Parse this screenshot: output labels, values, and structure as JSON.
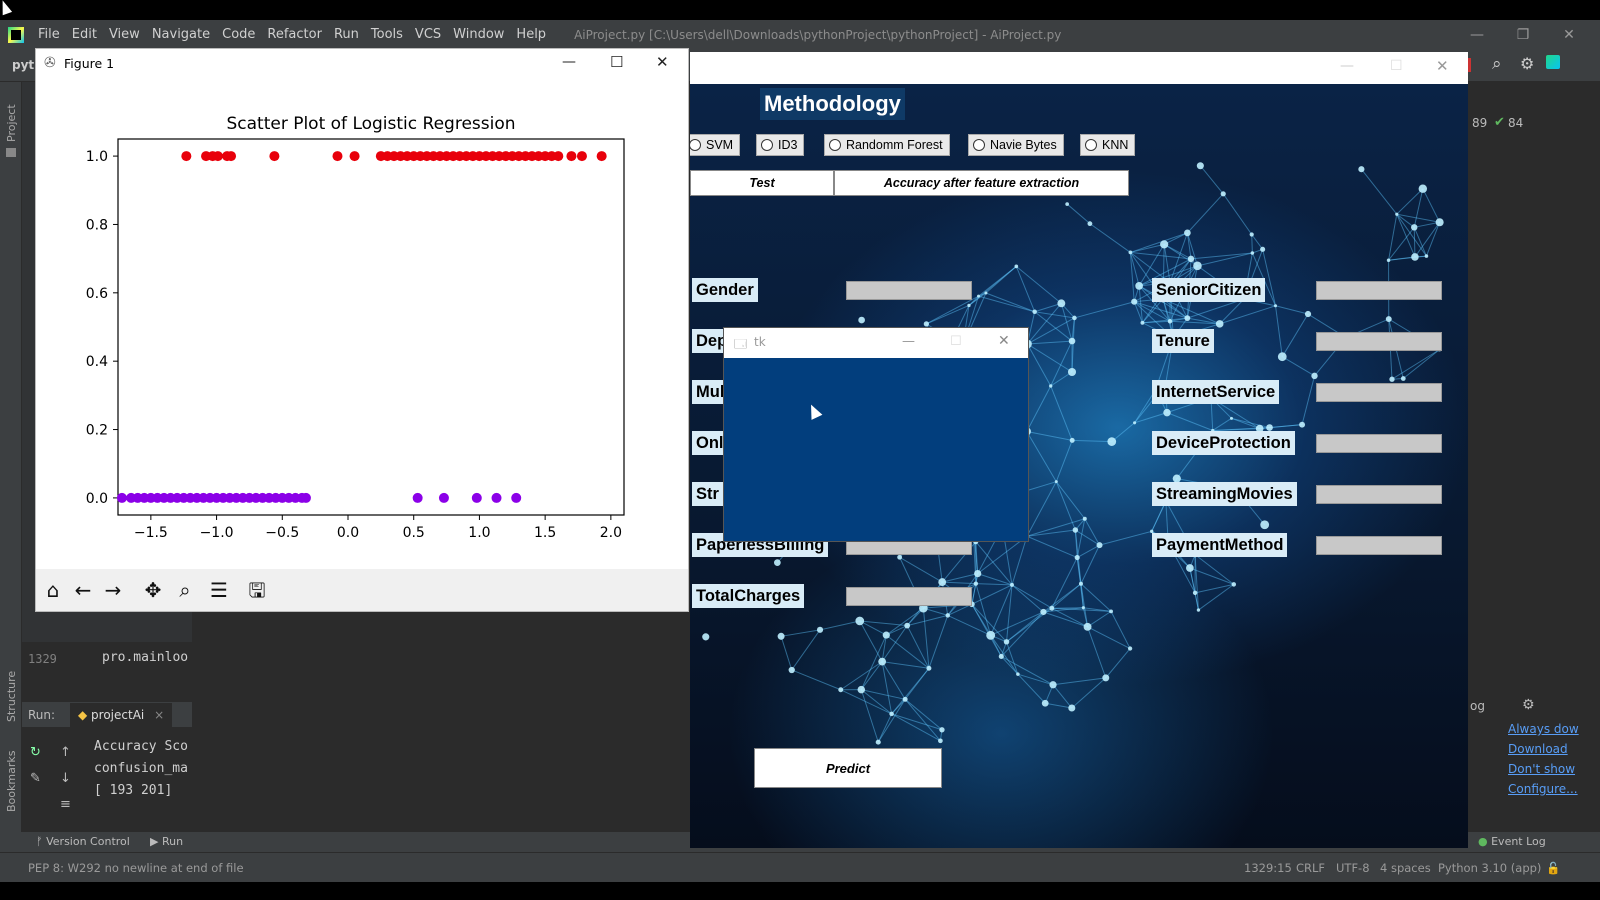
{
  "ide": {
    "menu": [
      "File",
      "Edit",
      "View",
      "Navigate",
      "Code",
      "Refactor",
      "Run",
      "Tools",
      "VCS",
      "Window",
      "Help"
    ],
    "title": "AiProject.py [C:\\Users\\dell\\Downloads\\pythonProject\\pythonProject] - AiProject.py",
    "project_label": "Project",
    "structure_label": "Structure",
    "bookmarks_label": "Bookmarks",
    "code_line_number": "1329",
    "code_line_text": "pro.mainloo",
    "run_label": "Run:",
    "run_tab": "projectAi",
    "run_output": [
      "Accuracy Sco",
      "confusion_ma",
      "[ 193  201]"
    ],
    "inspection_count": "84",
    "inspection_prefix": "89",
    "bottom_tabs": {
      "version_control": "Version Control",
      "run": "Run",
      "event_log": "Event Log"
    },
    "status": {
      "message": "PEP 8: W292 no newline at end of file",
      "position": "1329:15",
      "line_sep": "CRLF",
      "encoding": "UTF-8",
      "indent": "4 spaces",
      "interpreter": "Python 3.10 (app)"
    },
    "event_log_links": [
      "Always dow",
      "Download",
      "Don't show",
      "Configure..."
    ],
    "log_label": "og"
  },
  "app": {
    "heading": "Methodology",
    "algorithms": [
      "SVM",
      "ID3",
      "Randomm Forest",
      "Navie Bytes",
      "KNN"
    ],
    "test_label": "Test",
    "accuracy_label": "Accuracy after feature extraction",
    "left_fields": [
      "Gender",
      "Dep",
      "Mul",
      "Onl",
      "Str",
      "PaperlessBilling",
      "TotalCharges"
    ],
    "right_fields": [
      "SeniorCitizen",
      "Tenure",
      "InternetService",
      "DeviceProtection",
      "StreamingMovies",
      "PaymentMethod"
    ],
    "predict_label": "Predict"
  },
  "tk_window": {
    "title": "tk"
  },
  "figure_window": {
    "title": "Figure 1"
  },
  "chart_data": {
    "type": "scatter",
    "title": "Scatter Plot of Logistic Regression",
    "xlabel": "",
    "ylabel": "",
    "xlim": [
      -1.75,
      2.1
    ],
    "ylim": [
      -0.05,
      1.05
    ],
    "xticks": [
      -1.5,
      -1.0,
      -0.5,
      0.0,
      0.5,
      1.0,
      1.5,
      2.0
    ],
    "xtick_labels": [
      "−1.5",
      "−1.0",
      "−0.5",
      "0.0",
      "0.5",
      "1.0",
      "1.5",
      "2.0"
    ],
    "yticks": [
      0.0,
      0.2,
      0.4,
      0.6,
      0.8,
      1.0
    ],
    "ytick_labels": [
      "0.0",
      "0.2",
      "0.4",
      "0.6",
      "0.8",
      "1.0"
    ],
    "series": [
      {
        "color": "#e8000b",
        "y": 1.0,
        "x": [
          -1.23,
          -1.08,
          -1.03,
          -0.99,
          -0.92,
          -0.89,
          -0.56,
          -0.08,
          0.05,
          0.25,
          0.3,
          0.35,
          0.4,
          0.45,
          0.5,
          0.55,
          0.6,
          0.65,
          0.7,
          0.75,
          0.8,
          0.85,
          0.9,
          0.95,
          1.0,
          1.05,
          1.1,
          1.15,
          1.2,
          1.25,
          1.3,
          1.35,
          1.4,
          1.45,
          1.5,
          1.55,
          1.6,
          1.7,
          1.78,
          1.93
        ]
      },
      {
        "color": "#8b00e8",
        "y": 0.0,
        "x": [
          -1.72,
          -1.65,
          -1.6,
          -1.55,
          -1.5,
          -1.45,
          -1.4,
          -1.35,
          -1.3,
          -1.25,
          -1.2,
          -1.15,
          -1.1,
          -1.05,
          -1.0,
          -0.95,
          -0.9,
          -0.85,
          -0.8,
          -0.75,
          -0.7,
          -0.65,
          -0.6,
          -0.55,
          -0.5,
          -0.45,
          -0.4,
          -0.35,
          -0.32,
          0.53,
          0.73,
          0.98,
          1.13,
          1.28
        ]
      }
    ],
    "grid": false
  }
}
